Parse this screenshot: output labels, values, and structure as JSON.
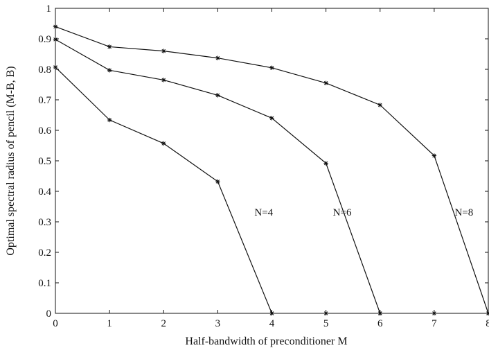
{
  "chart_data": {
    "type": "line",
    "title": "",
    "xlabel": "Half-bandwidth of preconditioner M",
    "ylabel": "Optimal spectral radius of pencil (M-B, B)",
    "xlim": [
      0,
      8
    ],
    "ylim": [
      0,
      1
    ],
    "x_ticks": [
      "0",
      "1",
      "2",
      "3",
      "4",
      "5",
      "6",
      "7",
      "8"
    ],
    "y_ticks": [
      "0",
      "0.1",
      "0.2",
      "0.3",
      "0.4",
      "0.5",
      "0.6",
      "0.7",
      "0.8",
      "0.9",
      "1"
    ],
    "grid": false,
    "legend": "none",
    "series": [
      {
        "name": "N=4",
        "x": [
          0,
          1,
          2,
          3,
          4
        ],
        "values": [
          0.807,
          0.634,
          0.557,
          0.432,
          0
        ]
      },
      {
        "name": "N=6",
        "x": [
          0,
          1,
          2,
          3,
          4,
          5,
          6
        ],
        "values": [
          0.898,
          0.797,
          0.765,
          0.715,
          0.64,
          0.492,
          0
        ]
      },
      {
        "name": "N=8",
        "x": [
          0,
          1,
          2,
          3,
          4,
          5,
          6,
          7,
          8
        ],
        "values": [
          0.94,
          0.874,
          0.86,
          0.837,
          0.805,
          0.755,
          0.683,
          0.517,
          0
        ]
      }
    ],
    "markers_on_x_axis": [
      4,
      5,
      6,
      7,
      8
    ],
    "line_color": "#111111"
  }
}
